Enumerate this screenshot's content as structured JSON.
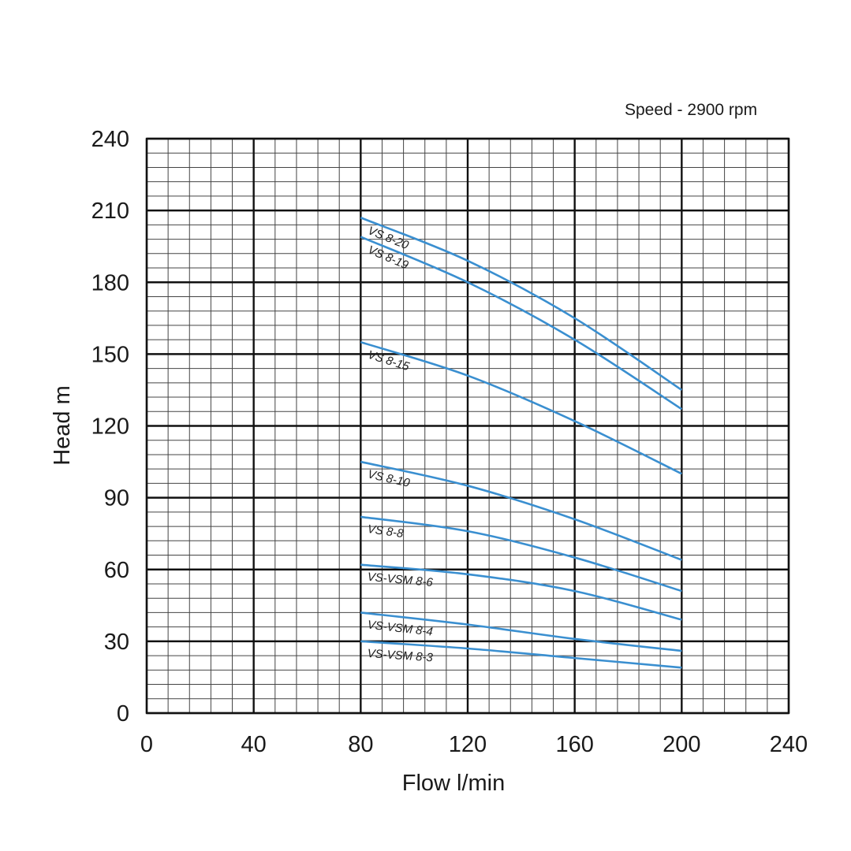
{
  "chart_data": {
    "type": "line",
    "note": "Speed - 2900 rpm",
    "xlabel": "Flow l/min",
    "ylabel": "Head m",
    "xlim": [
      0,
      240
    ],
    "ylim": [
      0,
      240
    ],
    "x_ticks": [
      "0",
      "40",
      "80",
      "120",
      "160",
      "200",
      "240"
    ],
    "y_ticks": [
      "0",
      "30",
      "60",
      "90",
      "120",
      "150",
      "180",
      "210",
      "240"
    ],
    "grid": true,
    "line_color": "#3a8fd0",
    "series": [
      {
        "name": "VS 8-20",
        "x": [
          80,
          120,
          160,
          200
        ],
        "y": [
          207,
          189,
          165,
          135
        ]
      },
      {
        "name": "VS 8-19",
        "x": [
          80,
          120,
          160,
          200
        ],
        "y": [
          199,
          180,
          156,
          127
        ]
      },
      {
        "name": "VS 8-15",
        "x": [
          80,
          120,
          160,
          200
        ],
        "y": [
          155,
          141,
          122,
          100
        ]
      },
      {
        "name": "VS 8-10",
        "x": [
          80,
          120,
          160,
          200
        ],
        "y": [
          105,
          95,
          81,
          64
        ]
      },
      {
        "name": "VS 8-8",
        "x": [
          80,
          120,
          160,
          200
        ],
        "y": [
          82,
          76,
          65,
          51
        ]
      },
      {
        "name": "VS-VSM 8-6",
        "x": [
          80,
          120,
          160,
          200
        ],
        "y": [
          62,
          58,
          51,
          39
        ]
      },
      {
        "name": "VS-VSM 8-4",
        "x": [
          80,
          120,
          160,
          200
        ],
        "y": [
          42,
          37,
          31,
          26
        ]
      },
      {
        "name": "VS-VSM 8-3",
        "x": [
          80,
          120,
          160,
          200
        ],
        "y": [
          30,
          27,
          23,
          19
        ]
      }
    ]
  }
}
